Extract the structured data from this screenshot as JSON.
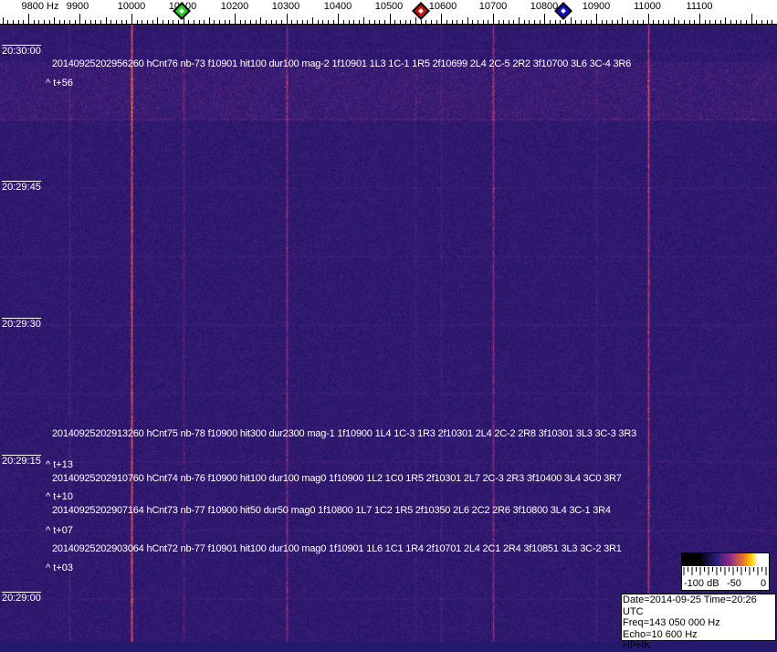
{
  "axis": {
    "unit_label": "9800 Hz",
    "freq_ticks": [
      9800,
      9900,
      10000,
      10100,
      10200,
      10300,
      10400,
      10500,
      10600,
      10700,
      10800,
      10900,
      11000,
      11100
    ],
    "labels": [
      "9800 Hz",
      "9900",
      "10000",
      "10100",
      "10200",
      "10300",
      "10400",
      "10500",
      "10600",
      "10700",
      "10800",
      "10900",
      "11000",
      "11100"
    ],
    "markers": [
      {
        "name": "green-marker",
        "freq": 10097,
        "color": "#22cc22"
      },
      {
        "name": "red-marker",
        "freq": 10560,
        "color": "#cc1111"
      },
      {
        "name": "blue-marker",
        "freq": 10837,
        "color": "#1111cc"
      }
    ]
  },
  "time_labels": [
    "20:30:00",
    "20:29:45",
    "20:29:30",
    "20:29:15",
    "20:29:00"
  ],
  "detections": [
    {
      "text": "20140925202956260 hCnt76 nb-73 f10901 hit100 dur100 mag-2 1f10901 1L3 1C-1 1R5 2f10699 2L4 2C-5 2R2 3f10700 3L6 3C-4 3R6",
      "offset": "^ t+56"
    },
    {
      "text": "20140925202913260 hCnt75 nb-78 f10900 hit300 dur2300 mag-1 1f10900 1L4 1C-3 1R3 2f10301 2L4 2C-2 2R8 3f10301 3L3 3C-3 3R3",
      "offset": "^ t+13"
    },
    {
      "text": "20140925202910760 hCnt74 nb-76 f10900 hit100 dur100 mag0 1f10900 1L2 1C0 1R5 2f10301 2L7 2C-3 2R3 3f10400 3L4 3C0 3R7",
      "offset": "^ t+10"
    },
    {
      "text": "20140925202907164 hCnt73 nb-77 f10900 hit50 dur50 mag0 1f10800 1L7 1C2 1R5 2f10350 2L6 2C2 2R6 3f10800 3L4 3C-1 3R4",
      "offset": "^ t+07"
    },
    {
      "text": "20140925202903064 hCnt72 nb-77 f10901 hit100 dur100 mag0 1f10901 1L6 1C1 1R4 2f10701 2L4 2C1 2R4 3f10851 3L3 3C-2 3R1",
      "offset": "^ t+03"
    }
  ],
  "colorbar": {
    "labels": [
      "-100 dB",
      "-50",
      "0"
    ]
  },
  "info": {
    "date_time": "Date=2014-09-25 Time=20:26 UTC",
    "freq": "Freq=143 050 000 Hz",
    "echo": "Echo=10 600 Hz",
    "station": "HPHK"
  },
  "colors": {
    "background": "#231a6e",
    "carrier": "#e07a30"
  }
}
